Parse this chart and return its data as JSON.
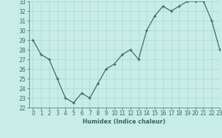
{
  "x": [
    0,
    1,
    2,
    3,
    4,
    5,
    6,
    7,
    8,
    9,
    10,
    11,
    12,
    13,
    14,
    15,
    16,
    17,
    18,
    19,
    20,
    21,
    22,
    23
  ],
  "y": [
    29.0,
    27.5,
    27.0,
    25.0,
    23.0,
    22.5,
    23.5,
    23.0,
    24.5,
    26.0,
    26.5,
    27.5,
    28.0,
    27.0,
    30.0,
    31.5,
    32.5,
    32.0,
    32.5,
    33.0,
    33.0,
    33.0,
    31.0,
    28.0
  ],
  "xlabel": "Humidex (Indice chaleur)",
  "ylim": [
    22,
    33
  ],
  "xlim": [
    -0.5,
    23
  ],
  "yticks": [
    22,
    23,
    24,
    25,
    26,
    27,
    28,
    29,
    30,
    31,
    32,
    33
  ],
  "xticks": [
    0,
    1,
    2,
    3,
    4,
    5,
    6,
    7,
    8,
    9,
    10,
    11,
    12,
    13,
    14,
    15,
    16,
    17,
    18,
    19,
    20,
    21,
    22,
    23
  ],
  "line_color": "#2e6b5e",
  "marker": "+",
  "bg_color": "#c8ece6",
  "grid_color": "#a8d8d0",
  "xlabel_fontsize": 6.0,
  "tick_fontsize": 5.5
}
